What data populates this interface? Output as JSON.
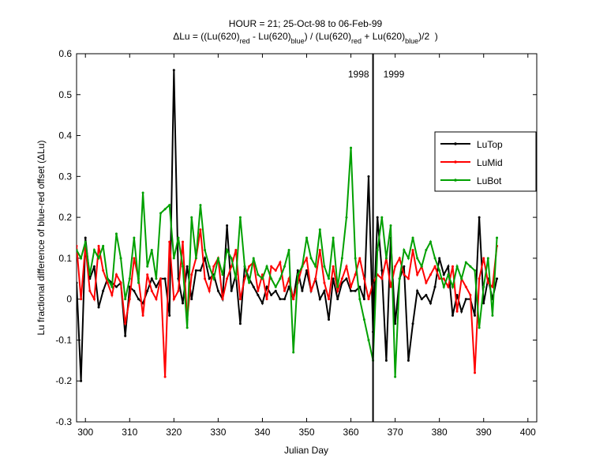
{
  "chart_data": {
    "type": "line",
    "title": "HOUR = 21; 25-Oct-98 to 06-Feb-99",
    "title_parts": [
      "ΔLu = ((Lu(620)",
      "red",
      " - Lu(620)",
      "blue",
      ") / (Lu(620)",
      "red",
      " + Lu(620)",
      "blue",
      ")/2  )"
    ],
    "x_label": "Julian Day",
    "y_label": "Lu fractional difference of blue-red offset (ΔLu)",
    "xlim": [
      298,
      402
    ],
    "ylim": [
      -0.3,
      0.6
    ],
    "xticks": [
      300,
      310,
      320,
      330,
      340,
      350,
      360,
      370,
      380,
      390,
      400
    ],
    "yticks": [
      -0.3,
      -0.2,
      -0.1,
      0,
      0.1,
      0.2,
      0.3,
      0.4,
      0.5,
      0.6
    ],
    "grid": false,
    "legend": "upper right",
    "vline": 365,
    "annotations": [
      "1998",
      "1999"
    ],
    "x": [
      298,
      299,
      300,
      301,
      302,
      303,
      304,
      305,
      306,
      307,
      308,
      309,
      310,
      311,
      312,
      313,
      314,
      315,
      316,
      317,
      318,
      319,
      320,
      321,
      322,
      323,
      324,
      325,
      326,
      327,
      328,
      329,
      330,
      331,
      332,
      333,
      334,
      335,
      336,
      337,
      338,
      339,
      340,
      341,
      342,
      343,
      344,
      345,
      346,
      347,
      348,
      349,
      350,
      351,
      352,
      353,
      354,
      355,
      356,
      357,
      358,
      359,
      360,
      361,
      362,
      363,
      364,
      365,
      366,
      367,
      368,
      369,
      370,
      371,
      372,
      373,
      374,
      375,
      376,
      377,
      378,
      379,
      380,
      381,
      382,
      383,
      384,
      385,
      386,
      387,
      388,
      389,
      390,
      391,
      392,
      393
    ],
    "series": [
      {
        "name": "LuTop",
        "color": "#000000",
        "values": [
          0.04,
          -0.2,
          0.15,
          0.05,
          0.08,
          -0.02,
          0.02,
          0.05,
          0.04,
          0.03,
          0.04,
          -0.09,
          0.03,
          0.02,
          0.0,
          -0.01,
          0.02,
          0.05,
          0.03,
          0.05,
          0.05,
          -0.04,
          0.56,
          0.05,
          -0.01,
          0.08,
          0.0,
          0.07,
          0.07,
          0.1,
          0.05,
          0.06,
          0.02,
          0.0,
          0.18,
          0.02,
          0.06,
          -0.06,
          0.08,
          0.05,
          0.03,
          0.01,
          -0.01,
          0.03,
          0.01,
          0.02,
          0.0,
          0.0,
          0.03,
          0.0,
          0.07,
          0.02,
          0.07,
          0.02,
          0.05,
          0.0,
          0.02,
          -0.05,
          0.05,
          0.0,
          0.04,
          0.05,
          0.02,
          0.02,
          0.03,
          0.0,
          0.3,
          -0.08,
          0.2,
          0.07,
          -0.15,
          0.15,
          -0.06,
          0.05,
          0.08,
          -0.15,
          -0.06,
          0.02,
          0.0,
          0.01,
          -0.01,
          0.03,
          0.1,
          0.06,
          0.08,
          -0.04,
          0.01,
          -0.03,
          0.0,
          0.0,
          -0.04,
          0.2,
          -0.01,
          0.05,
          0.0,
          0.05
        ]
      },
      {
        "name": "LuMid",
        "color": "#ff0000",
        "values": [
          0.13,
          0.0,
          0.13,
          0.02,
          0.0,
          0.13,
          0.07,
          0.04,
          0.01,
          0.06,
          0.04,
          -0.06,
          0.0,
          0.1,
          0.05,
          -0.04,
          0.06,
          0.02,
          0.0,
          0.05,
          -0.19,
          0.14,
          0.0,
          0.02,
          0.14,
          -0.05,
          0.06,
          0.1,
          0.17,
          0.05,
          0.02,
          0.08,
          0.1,
          0.0,
          0.05,
          0.08,
          0.12,
          0.0,
          0.05,
          0.08,
          0.09,
          0.02,
          0.06,
          0.0,
          0.08,
          0.07,
          0.09,
          0.02,
          0.05,
          0.0,
          0.04,
          0.08,
          0.1,
          0.02,
          0.05,
          0.12,
          0.04,
          0.0,
          0.08,
          0.02,
          0.05,
          0.08,
          0.03,
          0.06,
          0.1,
          0.05,
          0.0,
          0.04,
          0.06,
          0.05,
          0.1,
          0.03,
          0.08,
          0.1,
          0.06,
          0.05,
          0.12,
          0.06,
          0.08,
          0.04,
          0.06,
          0.08,
          0.05,
          0.05,
          0.03,
          0.08,
          -0.03,
          0.05,
          0.03,
          0.01,
          -0.18,
          0.05,
          0.1,
          0.04,
          0.03,
          0.13
        ]
      },
      {
        "name": "LuBot",
        "color": "#00a000",
        "values": [
          0.12,
          0.1,
          0.14,
          0.06,
          0.12,
          0.1,
          0.13,
          0.05,
          0.03,
          0.16,
          0.1,
          0.0,
          0.05,
          0.15,
          0.04,
          0.26,
          0.08,
          0.12,
          0.05,
          0.21,
          0.22,
          0.23,
          0.1,
          0.15,
          0.08,
          -0.07,
          0.2,
          0.1,
          0.23,
          0.12,
          0.08,
          0.05,
          0.1,
          0.06,
          0.12,
          0.1,
          0.05,
          0.2,
          0.08,
          0.04,
          0.1,
          0.06,
          0.05,
          0.08,
          0.05,
          0.03,
          0.05,
          0.08,
          0.12,
          -0.13,
          0.06,
          0.08,
          0.15,
          0.1,
          0.08,
          0.17,
          0.08,
          0.05,
          0.15,
          0.03,
          0.1,
          0.2,
          0.37,
          0.1,
          0.0,
          -0.05,
          -0.1,
          -0.15,
          0.12,
          0.2,
          0.1,
          0.18,
          -0.19,
          0.05,
          0.12,
          0.1,
          0.15,
          0.1,
          0.08,
          0.12,
          0.14,
          0.1,
          0.07,
          0.03,
          0.06,
          0.03,
          0.08,
          0.05,
          0.09,
          0.08,
          0.07,
          -0.07,
          0.03,
          0.1,
          -0.04,
          0.15
        ]
      }
    ]
  }
}
